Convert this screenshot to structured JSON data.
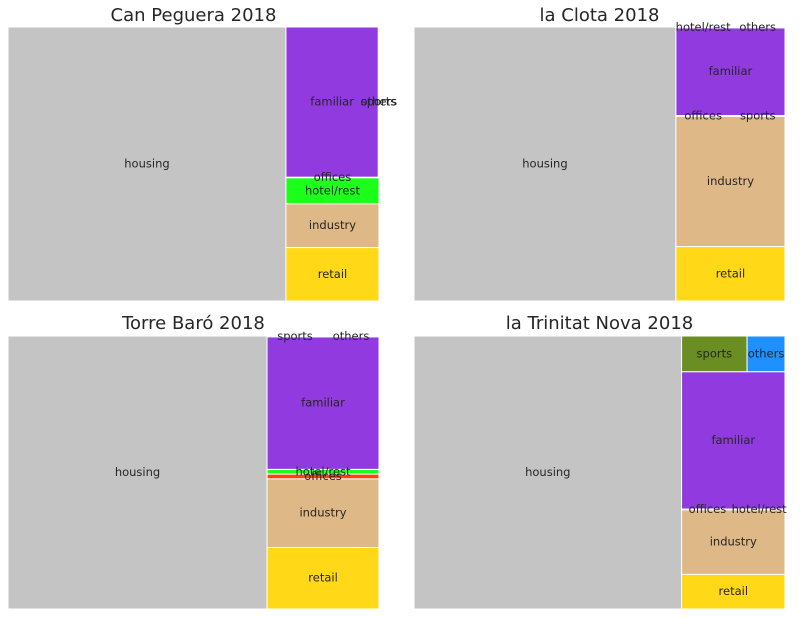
{
  "chart_data": [
    {
      "type": "treemap",
      "title": "Can Peguera 2018",
      "cells": [
        {
          "label": "housing",
          "value": 29.9,
          "color": "#c4c4c4"
        },
        {
          "label": "familiar",
          "value": 5.45,
          "color": "#913ae0"
        },
        {
          "label": "sports",
          "value": 0.02,
          "color": "#6b8e23"
        },
        {
          "label": "others",
          "value": 0.02,
          "color": "#1e90ff"
        },
        {
          "label": "offices",
          "value": 0.02,
          "color": "#ff4500"
        },
        {
          "label": "hotel/rest",
          "value": 0.95,
          "color": "#1bff1b"
        },
        {
          "label": "industry",
          "value": 1.6,
          "color": "#deb887"
        },
        {
          "label": "retail",
          "value": 1.95,
          "color": "#ffd817"
        }
      ]
    },
    {
      "type": "treemap",
      "title": "la Clota 2018",
      "cells": [
        {
          "label": "housing",
          "value": 27.8,
          "color": "#c4c4c4"
        },
        {
          "label": "hotel/rest",
          "value": 0.02,
          "color": "#1bff1b"
        },
        {
          "label": "others",
          "value": 0.02,
          "color": "#1e90ff"
        },
        {
          "label": "familiar",
          "value": 3.7,
          "color": "#913ae0"
        },
        {
          "label": "offices",
          "value": 0.02,
          "color": "#ff4500"
        },
        {
          "label": "sports",
          "value": 0.02,
          "color": "#6b8e23"
        },
        {
          "label": "industry",
          "value": 5.5,
          "color": "#deb887"
        },
        {
          "label": "retail",
          "value": 2.3,
          "color": "#ffd817"
        }
      ]
    },
    {
      "type": "treemap",
      "title": "Torre Baró 2018",
      "cells": [
        {
          "label": "housing",
          "value": 26.7,
          "color": "#c4c4c4"
        },
        {
          "label": "sports",
          "value": 0.02,
          "color": "#6b8e23"
        },
        {
          "label": "others",
          "value": 0.02,
          "color": "#1e90ff"
        },
        {
          "label": "familiar",
          "value": 5.6,
          "color": "#913ae0"
        },
        {
          "label": "hotel/rest",
          "value": 0.2,
          "color": "#1bff1b"
        },
        {
          "label": "offices",
          "value": 0.2,
          "color": "#ff4500"
        },
        {
          "label": "industry",
          "value": 2.9,
          "color": "#deb887"
        },
        {
          "label": "retail",
          "value": 2.6,
          "color": "#ffd817"
        }
      ]
    },
    {
      "type": "treemap",
      "title": "la Trinitat Nova 2018",
      "cells": [
        {
          "label": "housing",
          "value": 29.6,
          "color": "#c4c4c4"
        },
        {
          "label": "sports",
          "value": 0.95,
          "color": "#6b8e23"
        },
        {
          "label": "others",
          "value": 0.55,
          "color": "#1e90ff"
        },
        {
          "label": "familiar",
          "value": 5.75,
          "color": "#913ae0"
        },
        {
          "label": "offices",
          "value": 0.02,
          "color": "#ff4500"
        },
        {
          "label": "hotel/rest",
          "value": 0.02,
          "color": "#1bff1b"
        },
        {
          "label": "industry",
          "value": 2.7,
          "color": "#deb887"
        },
        {
          "label": "retail",
          "value": 1.45,
          "color": "#ffd817"
        }
      ]
    }
  ]
}
